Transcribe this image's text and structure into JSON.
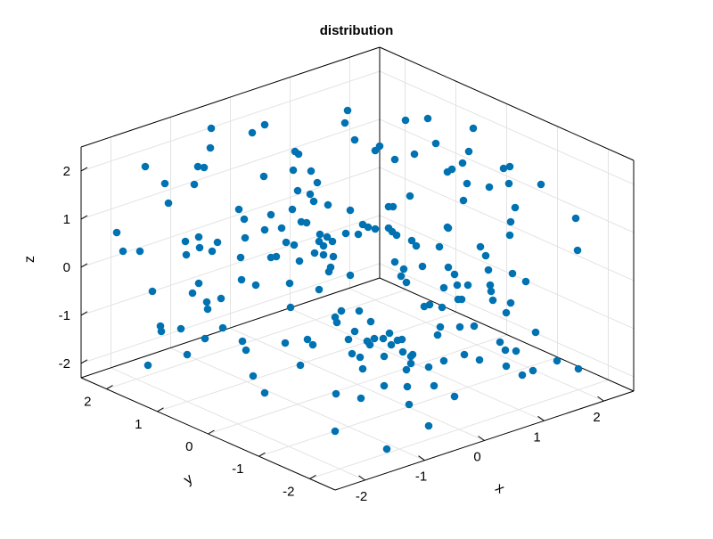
{
  "chart_data": {
    "type": "scatter3d",
    "title": "distribution",
    "xlabel": "x",
    "ylabel": "y",
    "zlabel": "z",
    "xlim": [
      -2.5,
      2.5
    ],
    "ylim": [
      -2.5,
      2.5
    ],
    "zlim": [
      -2.3,
      2.5
    ],
    "x_ticks": [
      -2,
      -1,
      0,
      1,
      2
    ],
    "y_ticks": [
      -2,
      -1,
      0,
      1,
      2
    ],
    "z_ticks": [
      -2,
      -1,
      0,
      1,
      2
    ],
    "grid": true,
    "marker_color": "#0072b2",
    "screen_points": [
      [
        131,
        261
      ],
      [
        138,
        282
      ],
      [
        157,
        282
      ],
      [
        163,
        187
      ],
      [
        171,
        327
      ],
      [
        180,
        366
      ],
      [
        181,
        372
      ],
      [
        185,
        206
      ],
      [
        189,
        228
      ],
      [
        166,
        410
      ],
      [
        203,
        369
      ],
      [
        210,
        398
      ],
      [
        208,
        271
      ],
      [
        209,
        286
      ],
      [
        216,
        329
      ],
      [
        218,
        207
      ],
      [
        222,
        187
      ],
      [
        223,
        318
      ],
      [
        223,
        266
      ],
      [
        224,
        278
      ],
      [
        229,
        188
      ],
      [
        230,
        380
      ],
      [
        232,
        339
      ],
      [
        233,
        347
      ],
      [
        236,
        166
      ],
      [
        237,
        144
      ],
      [
        238,
        282
      ],
      [
        244,
        272
      ],
      [
        248,
        335
      ],
      [
        250,
        368
      ],
      [
        268,
        235
      ],
      [
        270,
        289
      ],
      [
        271,
        314
      ],
      [
        272,
        383
      ],
      [
        274,
        246
      ],
      [
        275,
        267
      ],
      [
        276,
        393
      ],
      [
        283,
        149
      ],
      [
        287,
        320
      ],
      [
        284,
        422
      ],
      [
        296,
        198
      ],
      [
        297,
        140
      ],
      [
        297,
        258
      ],
      [
        297,
        441
      ],
      [
        304,
        241
      ],
      [
        304,
        289
      ],
      [
        310,
        288
      ],
      [
        316,
        256
      ],
      [
        320,
        385
      ],
      [
        321,
        272
      ],
      [
        325,
        318
      ],
      [
        326,
        345
      ],
      [
        328,
        235
      ],
      [
        329,
        191
      ],
      [
        330,
        275
      ],
      [
        331,
        170
      ],
      [
        334,
        214
      ],
      [
        335,
        173
      ],
      [
        336,
        293
      ],
      [
        337,
        410
      ],
      [
        338,
        249
      ],
      [
        344,
        250
      ],
      [
        345,
        381
      ],
      [
        348,
        218
      ],
      [
        349,
        192
      ],
      [
        351,
        387
      ],
      [
        352,
        226
      ],
      [
        353,
        284
      ],
      [
        356,
        205
      ],
      [
        358,
        325
      ],
      [
        358,
        271
      ],
      [
        359,
        263
      ],
      [
        363,
        276
      ],
      [
        363,
        286
      ],
      [
        367,
        266
      ],
      [
        368,
        230
      ],
      [
        369,
        305
      ],
      [
        371,
        300
      ],
      [
        373,
        271
      ],
      [
        374,
        288
      ],
      [
        376,
        484
      ],
      [
        376,
        356
      ],
      [
        377,
        442
      ],
      [
        378,
        362
      ],
      [
        383,
        349
      ],
      [
        388,
        262
      ],
      [
        387,
        138
      ],
      [
        390,
        124
      ],
      [
        391,
        381
      ],
      [
        393,
        309
      ],
      [
        393,
        236
      ],
      [
        395,
        397
      ],
      [
        398,
        157
      ],
      [
        398,
        372
      ],
      [
        402,
        263
      ],
      [
        403,
        349
      ],
      [
        404,
        401
      ],
      [
        405,
        447
      ],
      [
        407,
        252
      ],
      [
        407,
        414
      ],
      [
        412,
        383
      ],
      [
        413,
        255
      ],
      [
        415,
        387
      ],
      [
        416,
        361
      ],
      [
        420,
        380
      ],
      [
        421,
        257
      ],
      [
        421,
        169
      ],
      [
        426,
        164
      ],
      [
        430,
        380
      ],
      [
        431,
        400
      ],
      [
        431,
        433
      ],
      [
        434,
        504
      ],
      [
        436,
        232
      ],
      [
        436,
        256
      ],
      [
        437,
        374
      ],
      [
        439,
        387
      ],
      [
        440,
        260
      ],
      [
        441,
        232
      ],
      [
        443,
        294
      ],
      [
        443,
        179
      ],
      [
        445,
        264
      ],
      [
        446,
        382
      ],
      [
        450,
        310
      ],
      [
        451,
        381
      ],
      [
        452,
        395
      ],
      [
        453,
        302
      ],
      [
        455,
        135
      ],
      [
        456,
        317
      ],
      [
        456,
        415
      ],
      [
        457,
        434
      ],
      [
        459,
        454
      ],
      [
        460,
        220
      ],
      [
        461,
        408
      ],
      [
        461,
        400
      ],
      [
        462,
        270
      ],
      [
        463,
        398
      ],
      [
        465,
        173
      ],
      [
        467,
        276
      ],
      [
        474,
        299
      ],
      [
        476,
        344
      ],
      [
        480,
        133
      ],
      [
        481,
        412
      ],
      [
        481,
        478
      ],
      [
        482,
        342
      ],
      [
        487,
        433
      ],
      [
        489,
        161
      ],
      [
        493,
        277
      ],
      [
        491,
        376
      ],
      [
        494,
        367
      ],
      [
        496,
        345
      ],
      [
        498,
        323
      ],
      [
        498,
        405
      ],
      [
        502,
        193
      ],
      [
        502,
        255
      ],
      [
        503,
        256
      ],
      [
        503,
        300
      ],
      [
        507,
        190
      ],
      [
        510,
        308
      ],
      [
        510,
        445
      ],
      [
        513,
        320
      ],
      [
        514,
        336
      ],
      [
        516,
        367
      ],
      [
        518,
        336
      ],
      [
        519,
        183
      ],
      [
        520,
        225
      ],
      [
        521,
        398
      ],
      [
        524,
        206
      ],
      [
        525,
        320
      ],
      [
        526,
        170
      ],
      [
        531,
        144
      ],
      [
        532,
        366
      ],
      [
        538,
        404
      ],
      [
        539,
        277
      ],
      [
        545,
        287
      ],
      [
        548,
        303
      ],
      [
        549,
        210
      ],
      [
        550,
        320
      ],
      [
        551,
        327
      ],
      [
        553,
        337
      ],
      [
        561,
        384
      ],
      [
        565,
        189
      ],
      [
        567,
        393
      ],
      [
        568,
        411
      ],
      [
        568,
        351
      ],
      [
        572,
        187
      ],
      [
        573,
        340
      ],
      [
        571,
        206
      ],
      [
        572,
        264
      ],
      [
        573,
        249
      ],
      [
        575,
        307
      ],
      [
        578,
        233
      ],
      [
        579,
        394
      ],
      [
        586,
        421
      ],
      [
        590,
        316
      ],
      [
        598,
        416
      ],
      [
        601,
        373
      ],
      [
        607,
        207
      ],
      [
        625,
        405
      ],
      [
        646,
        245
      ],
      [
        649,
        414
      ],
      [
        648,
        281
      ]
    ]
  }
}
